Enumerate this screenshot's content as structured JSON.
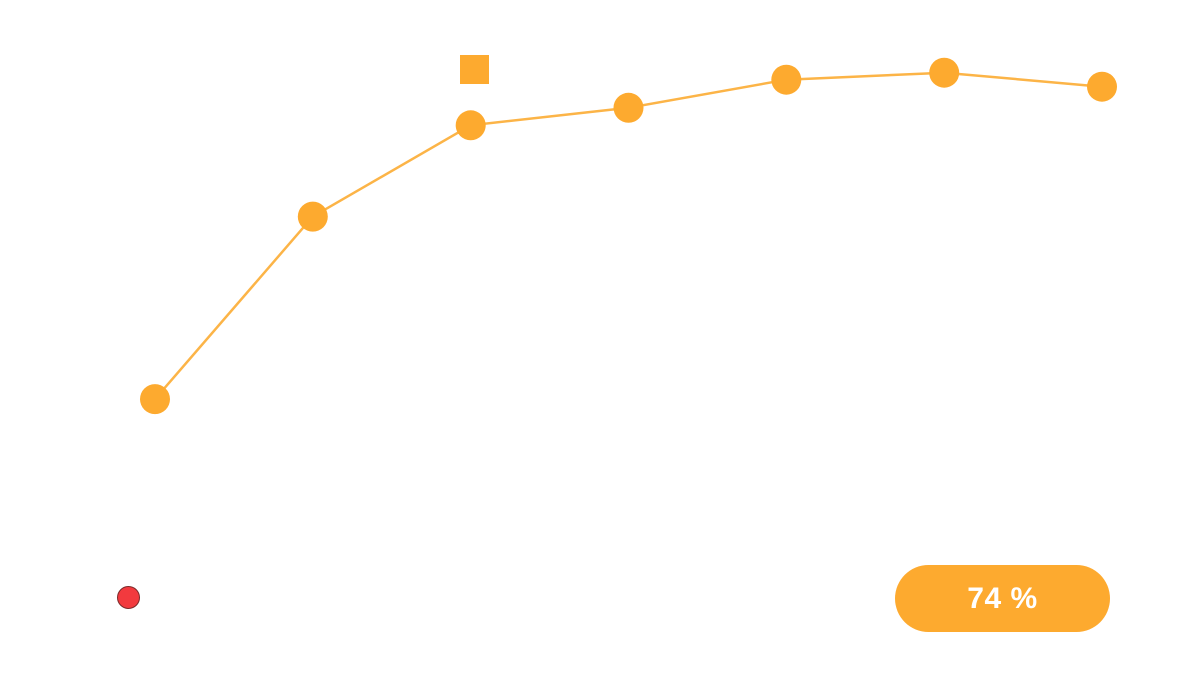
{
  "colors": {
    "series": "#FDAA2F",
    "line": "#FCB447",
    "status_dot": "#F23A3E",
    "pill": "#FDAA2F"
  },
  "legend": {
    "marker": "square-icon"
  },
  "status_indicator": {
    "icon": "red-dot-icon"
  },
  "percent_badge": {
    "label": "74 %",
    "value": 74
  },
  "chart_data": {
    "type": "line",
    "title": "",
    "xlabel": "",
    "ylabel": "",
    "x": [
      1,
      2,
      3,
      4,
      5,
      6,
      7
    ],
    "ylim": [
      0,
      100
    ],
    "grid": false,
    "legend_position": "top-center",
    "series": [
      {
        "values": [
          45,
          71,
          84,
          86.5,
          90.5,
          91.5,
          89.5
        ],
        "color": "#FDAA2F"
      }
    ]
  }
}
